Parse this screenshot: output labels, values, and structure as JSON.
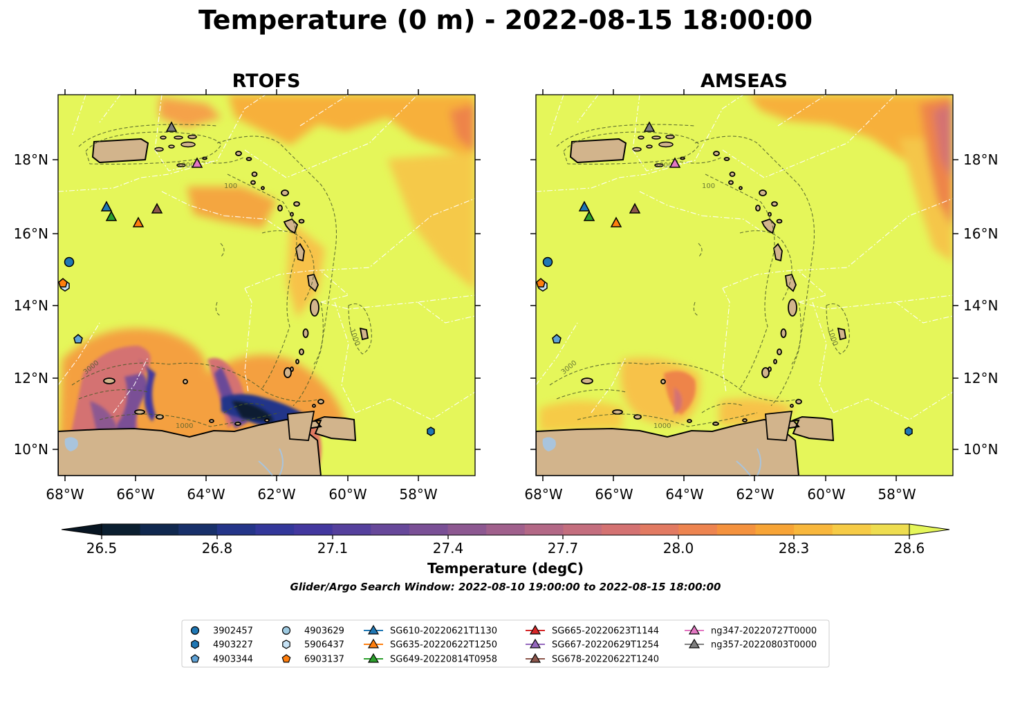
{
  "title": "Temperature (0 m) - 2022-08-15 18:00:00",
  "panels": [
    {
      "title": "RTOFS"
    },
    {
      "title": "AMSEAS"
    }
  ],
  "map": {
    "lon_range": [
      -68.2,
      -56.4
    ],
    "lat_range": [
      9.3,
      19.8
    ],
    "lon_ticks": [
      -68,
      -66,
      -64,
      -62,
      -60,
      -58
    ],
    "lon_tick_labels": [
      "68°W",
      "66°W",
      "64°W",
      "62°W",
      "60°W",
      "58°W"
    ],
    "lat_ticks": [
      10,
      12,
      14,
      16,
      18
    ],
    "lat_tick_labels": [
      "10°N",
      "12°N",
      "14°N",
      "16°N",
      "18°N"
    ],
    "ocean_color": "#e5f65a",
    "land_color": "#d2b48c",
    "contour_labels": [
      "1000",
      "100",
      "3000"
    ]
  },
  "colorbar": {
    "label": "Temperature (degC)",
    "units": "degC",
    "range": [
      26.5,
      28.6
    ],
    "step": 0.1,
    "extend": "both",
    "tick_labels": [
      "26.5",
      "26.8",
      "27.1",
      "27.4",
      "27.7",
      "28.0",
      "28.3",
      "28.6"
    ],
    "colors": [
      "#0b1f30",
      "#10284f",
      "#18306a",
      "#243589",
      "#33379a",
      "#43389f",
      "#55409d",
      "#67489a",
      "#7a5096",
      "#8d5891",
      "#a0608c",
      "#b36886",
      "#c46e7e",
      "#d47272",
      "#e27a62",
      "#ed8450",
      "#f4923e",
      "#f7a436",
      "#f8b73c",
      "#f6cb46",
      "#eedd50"
    ],
    "ext_low_color": "#071522",
    "ext_high_color": "#e5f65a"
  },
  "search_window": "Glider/Argo Search Window: 2022-08-10 19:00:00 to 2022-08-15 18:00:00",
  "legend": [
    {
      "label": "3902457",
      "marker": "circle",
      "color": "#1f77b4",
      "lon": -67.8,
      "lat": 15.2
    },
    {
      "label": "4903227",
      "marker": "hexagon",
      "color": "#1f77b4",
      "lon": -57.7,
      "lat": 10.5
    },
    {
      "label": "4903344",
      "marker": "pentagon",
      "color": "#5fa2d6",
      "lon": -67.6,
      "lat": 13.05
    },
    {
      "label": "4903629",
      "marker": "circle",
      "color": "#9ecae1",
      "lon": null,
      "lat": null
    },
    {
      "label": "5906437",
      "marker": "hexagon",
      "color": "#c6e2f5",
      "lon": -67.95,
      "lat": 14.55
    },
    {
      "label": "6903137",
      "marker": "pentagon",
      "color": "#ff7f0e",
      "lon": -68.05,
      "lat": 14.62
    },
    {
      "label": "SG610-20220621T1130",
      "marker": "triangle",
      "color": "#1f77b4",
      "lon": -66.8,
      "lat": 16.75
    },
    {
      "label": "SG635-20220622T1250",
      "marker": "triangle",
      "color": "#ff7f0e",
      "lon": -65.95,
      "lat": 16.3
    },
    {
      "label": "SG649-20220814T0958",
      "marker": "triangle",
      "color": "#2ca02c",
      "lon": -66.7,
      "lat": 16.5
    },
    {
      "label": "SG665-20220623T1144",
      "marker": "triangle",
      "color": "#d62728",
      "lon": null,
      "lat": null
    },
    {
      "label": "SG667-20220629T1254",
      "marker": "triangle",
      "color": "#9467bd",
      "lon": null,
      "lat": null
    },
    {
      "label": "SG678-20220622T1240",
      "marker": "triangle",
      "color": "#8c564b",
      "lon": -65.45,
      "lat": 16.7
    },
    {
      "label": "ng347-20220727T0000",
      "marker": "triangle",
      "color": "#e377c2",
      "lon": -64.3,
      "lat": 17.95
    },
    {
      "label": "ng357-20220803T0000",
      "marker": "triangle",
      "color": "#7f7f7f",
      "lon": -65.0,
      "lat": 18.9
    }
  ]
}
